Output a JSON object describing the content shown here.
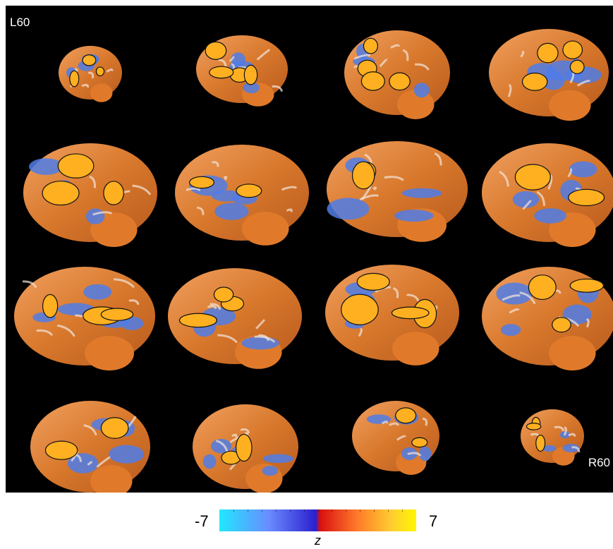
{
  "figure": {
    "left_label": "L60",
    "right_label": "R60"
  },
  "colorbar": {
    "min_label": "-7",
    "max_label": "7",
    "variable_label": "z",
    "colors": [
      "#20e8ff",
      "#6a8cff",
      "#2a1fcf",
      "#d81010",
      "#ff7a2a",
      "#ffd030",
      "#fff500"
    ]
  },
  "brain": {
    "rows": 4,
    "cols": 4,
    "slices": 16,
    "warm_color": "#e07a2a",
    "hot_color": "#ffb020",
    "cool_color": "#4f7de8",
    "outline_color": "#111111"
  }
}
